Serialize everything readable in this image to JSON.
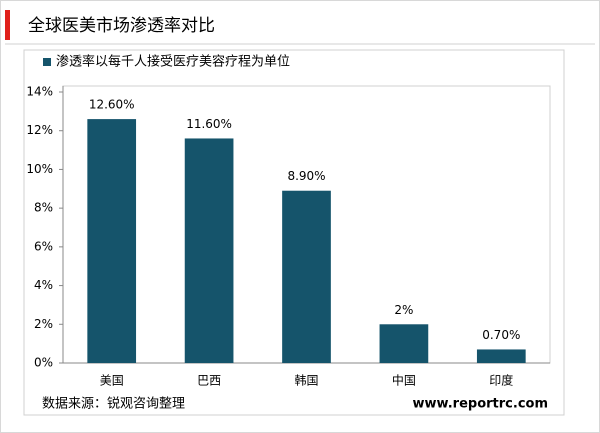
{
  "chart_data": {
    "type": "bar",
    "title": "全球医美市场渗透率对比",
    "legend": "渗透率以每千人接受医疗美容疗程为单位",
    "categories": [
      "美国",
      "巴西",
      "韩国",
      "中国",
      "印度"
    ],
    "values": [
      12.6,
      11.6,
      8.9,
      2,
      0.7
    ],
    "value_labels": [
      "12.60%",
      "11.60%",
      "8.90%",
      "2%",
      "0.70%"
    ],
    "color": "#15546b",
    "ylim": [
      0,
      14
    ],
    "yticks": [
      {
        "value": 0,
        "label": "0%"
      },
      {
        "value": 2,
        "label": "2%"
      },
      {
        "value": 4,
        "label": "4%"
      },
      {
        "value": 6,
        "label": "6%"
      },
      {
        "value": 8,
        "label": "8%"
      },
      {
        "value": 10,
        "label": "10%"
      },
      {
        "value": 12,
        "label": "12%"
      },
      {
        "value": 14,
        "label": "14%"
      }
    ],
    "source": "数据来源：锐观咨询整理",
    "website": "www.reportrc.com"
  }
}
